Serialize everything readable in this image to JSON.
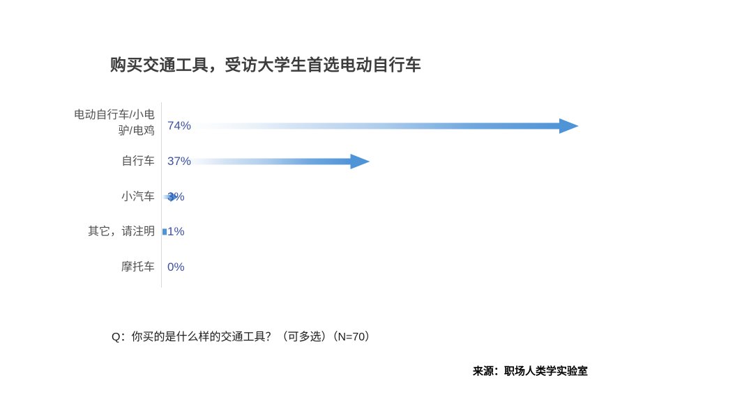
{
  "chart_data": {
    "type": "bar",
    "orientation": "horizontal",
    "bar_style": "gradient-arrow",
    "title": "购买交通工具，受访大学生首选电动自行车",
    "categories": [
      "电动自行车/小电驴/电鸡",
      "自行车",
      "小汽车",
      "其它，请注明",
      "摩托车"
    ],
    "values": [
      74,
      37,
      3,
      1,
      0
    ],
    "value_labels": [
      "74%",
      "37%",
      "3%",
      "1%",
      "0%"
    ],
    "xlim": [
      0,
      74
    ],
    "grid": false,
    "legend": null,
    "note": "Q：你买的是什么样的交通工具？（可多选）（N=70）",
    "source": "来源：职场人类学实验室",
    "colors": {
      "arrow_blue": "#5094D8",
      "value_text": "#3C51A3",
      "category_text": "#515151",
      "title_text": "#3C3C3C",
      "axis_line": "#D9D9D9",
      "note_text": "#1A1A1A",
      "source_text": "#000000"
    }
  }
}
